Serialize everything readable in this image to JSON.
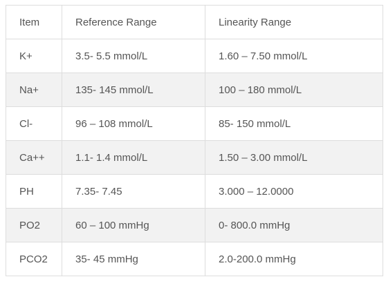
{
  "table": {
    "headers": [
      "Item",
      "Reference Range",
      "Linearity Range"
    ],
    "rows": [
      [
        "K+",
        "3.5- 5.5 mmol/L",
        "1.60 – 7.50 mmol/L"
      ],
      [
        "Na+",
        "135- 145 mmol/L",
        "100 – 180 mmol/L"
      ],
      [
        "Cl-",
        "96 – 108 mmol/L",
        "85- 150 mmol/L"
      ],
      [
        "Ca++",
        "1.1- 1.4 mmol/L",
        "1.50 – 3.00 mmol/L"
      ],
      [
        "PH",
        "7.35- 7.45",
        "3.000 – 12.0000"
      ],
      [
        "PO2",
        "60 – 100 mmHg",
        "0- 800.0 mmHg"
      ],
      [
        "PCO2",
        "35- 45 mmHg",
        "2.0-200.0 mmHg"
      ]
    ]
  }
}
